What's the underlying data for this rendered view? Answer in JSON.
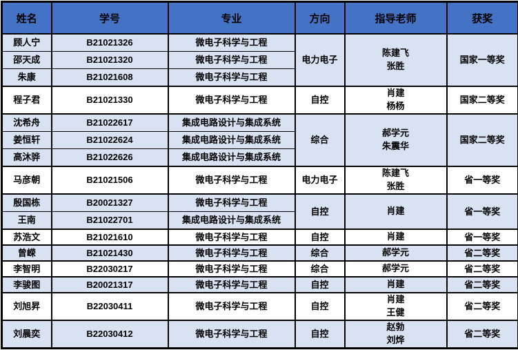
{
  "table": {
    "headers": [
      "姓名",
      "学号",
      "专业",
      "方向",
      "指导老师",
      "获奖"
    ],
    "groups": [
      {
        "shade": "alt",
        "direction": "电力电子",
        "advisors": [
          "陈建飞",
          "张胜"
        ],
        "award": "国家一等奖",
        "students": [
          {
            "name": "顾人宁",
            "id": "B21021326",
            "major": "微电子科学与工程"
          },
          {
            "name": "邵天成",
            "id": "B21021320",
            "major": "微电子科学与工程"
          },
          {
            "name": "朱康",
            "id": "B21021608",
            "major": "微电子科学与工程"
          }
        ]
      },
      {
        "shade": "white",
        "direction": "自控",
        "advisors": [
          "肖建",
          "杨杨"
        ],
        "award": "国家二等奖",
        "students": [
          {
            "name": "程子君",
            "id": "B21021330",
            "major": "微电子科学与工程"
          }
        ]
      },
      {
        "shade": "alt",
        "direction": "综合",
        "advisors": [
          "郝学元",
          "朱震华"
        ],
        "award": "国家二等奖",
        "students": [
          {
            "name": "沈希舟",
            "id": "B21022617",
            "major": "集成电路设计与集成系统"
          },
          {
            "name": "姜恒轩",
            "id": "B21022624",
            "major": "集成电路设计与集成系统"
          },
          {
            "name": "高沐骅",
            "id": "B21022626",
            "major": "集成电路设计与集成系统"
          }
        ]
      },
      {
        "shade": "white",
        "direction": "电力电子",
        "advisors": [
          "陈建飞",
          "张胜"
        ],
        "award": "省一等奖",
        "students": [
          {
            "name": "马彦朝",
            "id": "B21021506",
            "major": "微电子科学与工程"
          }
        ]
      },
      {
        "shade": "alt",
        "direction": "自控",
        "advisors": [
          "肖建"
        ],
        "award": "省一等奖",
        "students": [
          {
            "name": "殷国栋",
            "id": "B20021327",
            "major": "微电子科学与工程"
          },
          {
            "name": "王南",
            "id": "B21022701",
            "major": "集成电路设计与集成系统"
          }
        ]
      },
      {
        "shade": "white",
        "direction": "自控",
        "advisors": [
          "肖建"
        ],
        "award": "省一等奖",
        "students": [
          {
            "name": "苏浩文",
            "id": "B21021610",
            "major": "微电子科学与工程"
          }
        ]
      },
      {
        "shade": "alt",
        "direction": "综合",
        "advisors": [
          "郝学元"
        ],
        "award": "省二等奖",
        "students": [
          {
            "name": "曾嵘",
            "id": "B21021430",
            "major": "微电子科学与工程"
          }
        ]
      },
      {
        "shade": "white",
        "direction": "综合",
        "advisors": [
          "郝学元"
        ],
        "award": "省二等奖",
        "students": [
          {
            "name": "李智明",
            "id": "B22030217",
            "major": "微电子科学与工程"
          }
        ]
      },
      {
        "shade": "alt",
        "direction": "自控",
        "advisors": [
          "肖建"
        ],
        "award": "省二等奖",
        "students": [
          {
            "name": "李骏图",
            "id": "B20021317",
            "major": "微电子科学与工程"
          }
        ]
      },
      {
        "shade": "white",
        "direction": "自控",
        "advisors": [
          "肖建",
          "王健"
        ],
        "award": "省二等奖",
        "students": [
          {
            "name": "刘旭昇",
            "id": "B22030411",
            "major": "微电子科学与工程"
          }
        ]
      },
      {
        "shade": "alt",
        "direction": "自控",
        "advisors": [
          "赵勃",
          "刘烨"
        ],
        "award": "省二等奖",
        "students": [
          {
            "name": "刘晨奕",
            "id": "B22030412",
            "major": "微电子科学与工程"
          }
        ]
      }
    ]
  },
  "colors": {
    "header_bg": "#4472C4",
    "alt_row_bg": "#D9E2F3",
    "white_row_bg": "#FFFFFF",
    "border": "#000000",
    "text": "#000000"
  }
}
